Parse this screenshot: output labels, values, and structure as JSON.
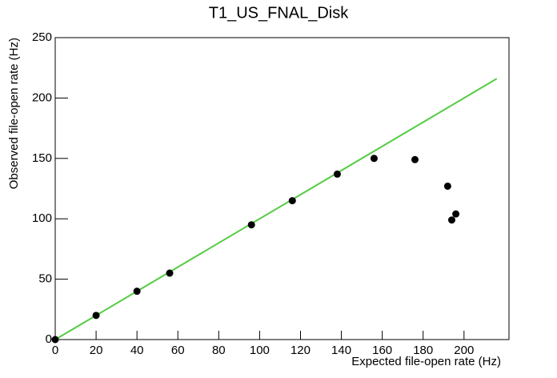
{
  "chart_data": {
    "type": "scatter",
    "title": "T1_US_FNAL_Disk",
    "x_label": "Expected file-open rate (Hz)",
    "y_label": "Observed file-open rate (Hz)",
    "points": {
      "color": "#000000",
      "x": [
        0,
        20,
        40,
        56,
        96,
        116,
        138,
        156,
        176,
        192,
        194,
        196
      ],
      "values": [
        0,
        20,
        40,
        55,
        95,
        115,
        137,
        150,
        149,
        127,
        99,
        104
      ]
    },
    "line": {
      "color": "#55cc44",
      "x": [
        0,
        216
      ],
      "values": [
        0,
        216
      ]
    },
    "xlim": [
      0,
      222
    ],
    "ylim": [
      0,
      250
    ],
    "xticks": [
      0,
      20,
      40,
      60,
      80,
      100,
      120,
      140,
      160,
      180,
      200
    ],
    "yticks": [
      0,
      50,
      100,
      150,
      200,
      250
    ]
  }
}
